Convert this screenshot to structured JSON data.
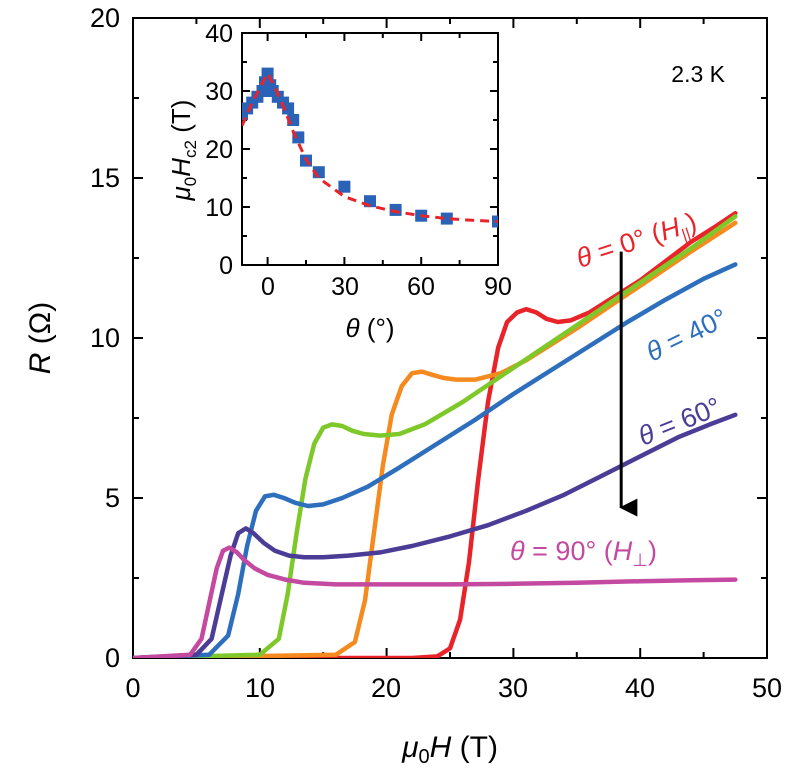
{
  "chart_data": [
    {
      "type": "line",
      "xlabel": "μ0H (T)",
      "ylabel": "R (Ω)",
      "xlim": [
        0,
        50
      ],
      "ylim": [
        0,
        20
      ],
      "xticks": [
        0,
        10,
        20,
        30,
        40,
        50
      ],
      "yticks": [
        0,
        5,
        10,
        15,
        20
      ],
      "grid": false,
      "annotation": "2.3 K",
      "arrow": {
        "x": 38.5,
        "y_from": 12.7,
        "y_to": 4.7
      },
      "series": [
        {
          "name": "θ = 0° (H||)",
          "color": "#e8242a",
          "x": [
            0,
            22,
            24,
            25,
            25.8,
            26.5,
            27.2,
            28,
            28.8,
            29.5,
            30.3,
            31,
            31.8,
            32.6,
            33.5,
            34.5,
            36,
            38,
            40,
            42,
            44,
            46,
            47.5
          ],
          "y": [
            0,
            0,
            0.05,
            0.3,
            1.2,
            3.0,
            5.5,
            8.0,
            9.7,
            10.5,
            10.8,
            10.9,
            10.8,
            10.6,
            10.5,
            10.55,
            10.8,
            11.3,
            11.8,
            12.4,
            13.0,
            13.5,
            13.9
          ]
        },
        {
          "name": "",
          "color": "#f58a1f",
          "x": [
            0,
            16,
            17.5,
            18.3,
            19,
            19.7,
            20.4,
            21.2,
            22,
            22.8,
            23.6,
            24.5,
            25.5,
            27,
            29,
            31,
            33,
            35,
            38,
            41,
            44,
            47.5
          ],
          "y": [
            0,
            0.1,
            0.5,
            1.8,
            3.9,
            6.0,
            7.6,
            8.5,
            8.9,
            8.95,
            8.85,
            8.75,
            8.7,
            8.7,
            8.9,
            9.3,
            9.8,
            10.3,
            11.1,
            11.9,
            12.7,
            13.6
          ]
        },
        {
          "name": "",
          "color": "#7ec82a",
          "x": [
            0,
            10,
            11.5,
            12.2,
            12.9,
            13.6,
            14.3,
            15,
            15.7,
            16.5,
            17.3,
            18.2,
            19.5,
            21,
            23,
            26,
            29,
            32,
            35,
            38,
            41,
            44,
            47.5
          ],
          "y": [
            0,
            0.1,
            0.6,
            2.0,
            3.9,
            5.6,
            6.7,
            7.2,
            7.3,
            7.25,
            7.1,
            7.0,
            6.95,
            7.0,
            7.3,
            8.0,
            8.8,
            9.6,
            10.4,
            11.2,
            12.0,
            12.8,
            13.8
          ]
        },
        {
          "name": "θ = 40°",
          "color": "#2d6fbd",
          "x": [
            0,
            6,
            7.5,
            8.3,
            9,
            9.7,
            10.4,
            11.1,
            11.9,
            12.8,
            13.8,
            15,
            16.5,
            18.5,
            21,
            24,
            27,
            30,
            33,
            36,
            39,
            42,
            45,
            47.5
          ],
          "y": [
            0,
            0.1,
            0.7,
            2.0,
            3.5,
            4.6,
            5.05,
            5.1,
            5.0,
            4.85,
            4.75,
            4.8,
            5.0,
            5.35,
            5.95,
            6.7,
            7.45,
            8.25,
            9.0,
            9.75,
            10.5,
            11.2,
            11.85,
            12.3
          ]
        },
        {
          "name": "θ = 60°",
          "color": "#4b3c96",
          "x": [
            0,
            5,
            6.2,
            7,
            7.7,
            8.3,
            8.9,
            9.5,
            10.3,
            11.2,
            12.3,
            13.5,
            15,
            17,
            19.5,
            22,
            25,
            28,
            31,
            34,
            37,
            40,
            43,
            45.5,
            47.5
          ],
          "y": [
            0,
            0.1,
            0.6,
            2.0,
            3.2,
            3.9,
            4.05,
            3.9,
            3.6,
            3.35,
            3.2,
            3.15,
            3.15,
            3.2,
            3.3,
            3.5,
            3.8,
            4.15,
            4.6,
            5.1,
            5.7,
            6.3,
            6.9,
            7.3,
            7.6
          ]
        },
        {
          "name": "θ = 90° (H⊥)",
          "color": "#c34aa0",
          "x": [
            0,
            4.5,
            5.4,
            6,
            6.6,
            7.1,
            7.6,
            8.2,
            8.8,
            9.6,
            10.6,
            12,
            13.5,
            16,
            20,
            25,
            30,
            35,
            40,
            44,
            47.5
          ],
          "y": [
            0,
            0.1,
            0.6,
            1.7,
            2.8,
            3.35,
            3.45,
            3.3,
            3.05,
            2.8,
            2.6,
            2.45,
            2.35,
            2.3,
            2.3,
            2.3,
            2.32,
            2.35,
            2.4,
            2.43,
            2.45
          ]
        }
      ]
    },
    {
      "type": "scatter",
      "xlabel": "θ (°)",
      "ylabel": "μ0Hc2 (T)",
      "xlim": [
        -10,
        90
      ],
      "ylim": [
        0,
        40
      ],
      "xticks": [
        0,
        30,
        60,
        90
      ],
      "yticks": [
        0,
        10,
        20,
        30,
        40
      ],
      "grid": false,
      "series": [
        {
          "name": "",
          "marker": "square",
          "color": "#2a62b8",
          "x": [
            -10,
            -8,
            -6,
            -4,
            -2,
            -1,
            0,
            1,
            2,
            4,
            6,
            8,
            10,
            12,
            15,
            20,
            30,
            40,
            50,
            60,
            70,
            90
          ],
          "y": [
            26,
            27,
            28,
            29,
            30,
            31.5,
            33,
            31,
            30,
            29,
            28,
            27,
            25,
            22,
            18,
            16,
            13.5,
            11,
            9.5,
            8.5,
            8,
            7.5
          ]
        },
        {
          "name": "",
          "type": "dashed-fit",
          "color": "#e8242a",
          "x": [
            -10,
            -6,
            -3,
            -1,
            0,
            1,
            3,
            6,
            10,
            15,
            20,
            30,
            40,
            50,
            60,
            70,
            80,
            90
          ],
          "y": [
            24,
            28,
            30.5,
            32.2,
            33,
            32.2,
            30.5,
            27.5,
            23,
            18.2,
            15,
            11.8,
            10.2,
            9.2,
            8.5,
            8.0,
            7.7,
            7.5
          ]
        }
      ]
    }
  ],
  "labels": {
    "main_ytick": [
      "0",
      "5",
      "10",
      "15",
      "20"
    ],
    "main_xtick": [
      "0",
      "10",
      "20",
      "30",
      "40",
      "50"
    ],
    "inset_ytick": [
      "0",
      "10",
      "20",
      "30",
      "40"
    ],
    "inset_xtick": [
      "0",
      "30",
      "60",
      "90"
    ],
    "temp": "2.3 K",
    "theta_sym": "θ",
    "s0_text": " = 0° (",
    "s0_h": "H",
    "s0_sub": "||",
    "s0_close": ")",
    "s40_text": " = 40°",
    "s60_text": " = 60°",
    "s90_text": " = 90° (",
    "s90_h": "H",
    "s90_sub": "⊥",
    "s90_close": ")",
    "x_mu": "μ",
    "x_sub": "0",
    "x_h": "H",
    "x_unit": " (T)",
    "y_r": "R",
    "y_unit": " (Ω)",
    "ix_theta": "θ",
    "ix_unit": " (°)",
    "iy_mu": "μ",
    "iy_sub0": "0",
    "iy_h": "H",
    "iy_subc2": "c2",
    "iy_unit": " (T)"
  }
}
